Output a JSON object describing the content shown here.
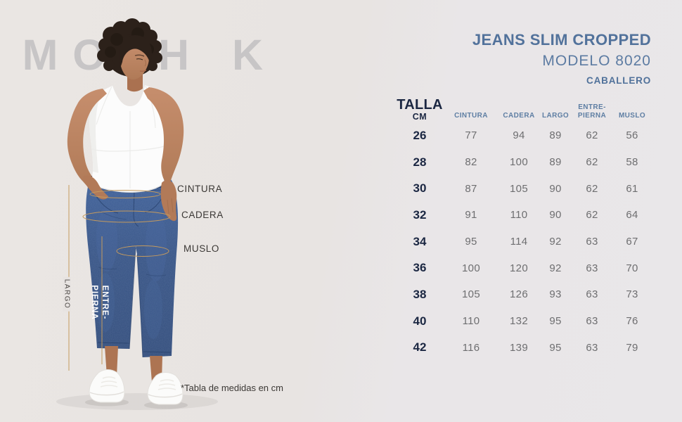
{
  "brand": {
    "name": "MOHK",
    "letters": [
      "M",
      "O",
      "H",
      "K"
    ]
  },
  "header": {
    "title": "JEANS SLIM CROPPED",
    "model": "MODELO 8020",
    "audience": "CABALLERO"
  },
  "figure": {
    "labels": {
      "cintura": "CINTURA",
      "cadera": "CADERA",
      "muslo": "MUSLO",
      "largo": "LARGO",
      "entrepierna": "ENTRE-\nPIERNA"
    },
    "footnote": "*Tabla de medidas en cm"
  },
  "size_table": {
    "size_column": {
      "title": "TALLA",
      "unit": "CM"
    },
    "columns": [
      "CINTURA",
      "CADERA",
      "LARGO",
      "ENTRE-\nPIERNA",
      "MUSLO"
    ],
    "rows": [
      {
        "talla": "26",
        "cintura": 77,
        "cadera": 94,
        "largo": 89,
        "entrepierna": 62,
        "muslo": 56
      },
      {
        "talla": "28",
        "cintura": 82,
        "cadera": 100,
        "largo": 89,
        "entrepierna": 62,
        "muslo": 58
      },
      {
        "talla": "30",
        "cintura": 87,
        "cadera": 105,
        "largo": 90,
        "entrepierna": 62,
        "muslo": 61
      },
      {
        "talla": "32",
        "cintura": 91,
        "cadera": 110,
        "largo": 90,
        "entrepierna": 62,
        "muslo": 64
      },
      {
        "talla": "34",
        "cintura": 95,
        "cadera": 114,
        "largo": 92,
        "entrepierna": 63,
        "muslo": 67
      },
      {
        "talla": "36",
        "cintura": 100,
        "cadera": 120,
        "largo": 92,
        "entrepierna": 63,
        "muslo": 70
      },
      {
        "talla": "38",
        "cintura": 105,
        "cadera": 126,
        "largo": 93,
        "entrepierna": 63,
        "muslo": 73
      },
      {
        "talla": "40",
        "cintura": 110,
        "cadera": 132,
        "largo": 95,
        "entrepierna": 63,
        "muslo": 76
      },
      {
        "talla": "42",
        "cintura": 116,
        "cadera": 139,
        "largo": 95,
        "entrepierna": 63,
        "muslo": 79
      }
    ]
  },
  "colors": {
    "accent_blue": "#52729b",
    "dark_navy": "#1b2742",
    "gold_line": "#c49a5e",
    "logo_gray": "#c7c5c6",
    "value_gray": "#6e6e70",
    "denim": "#3a5a8f"
  }
}
